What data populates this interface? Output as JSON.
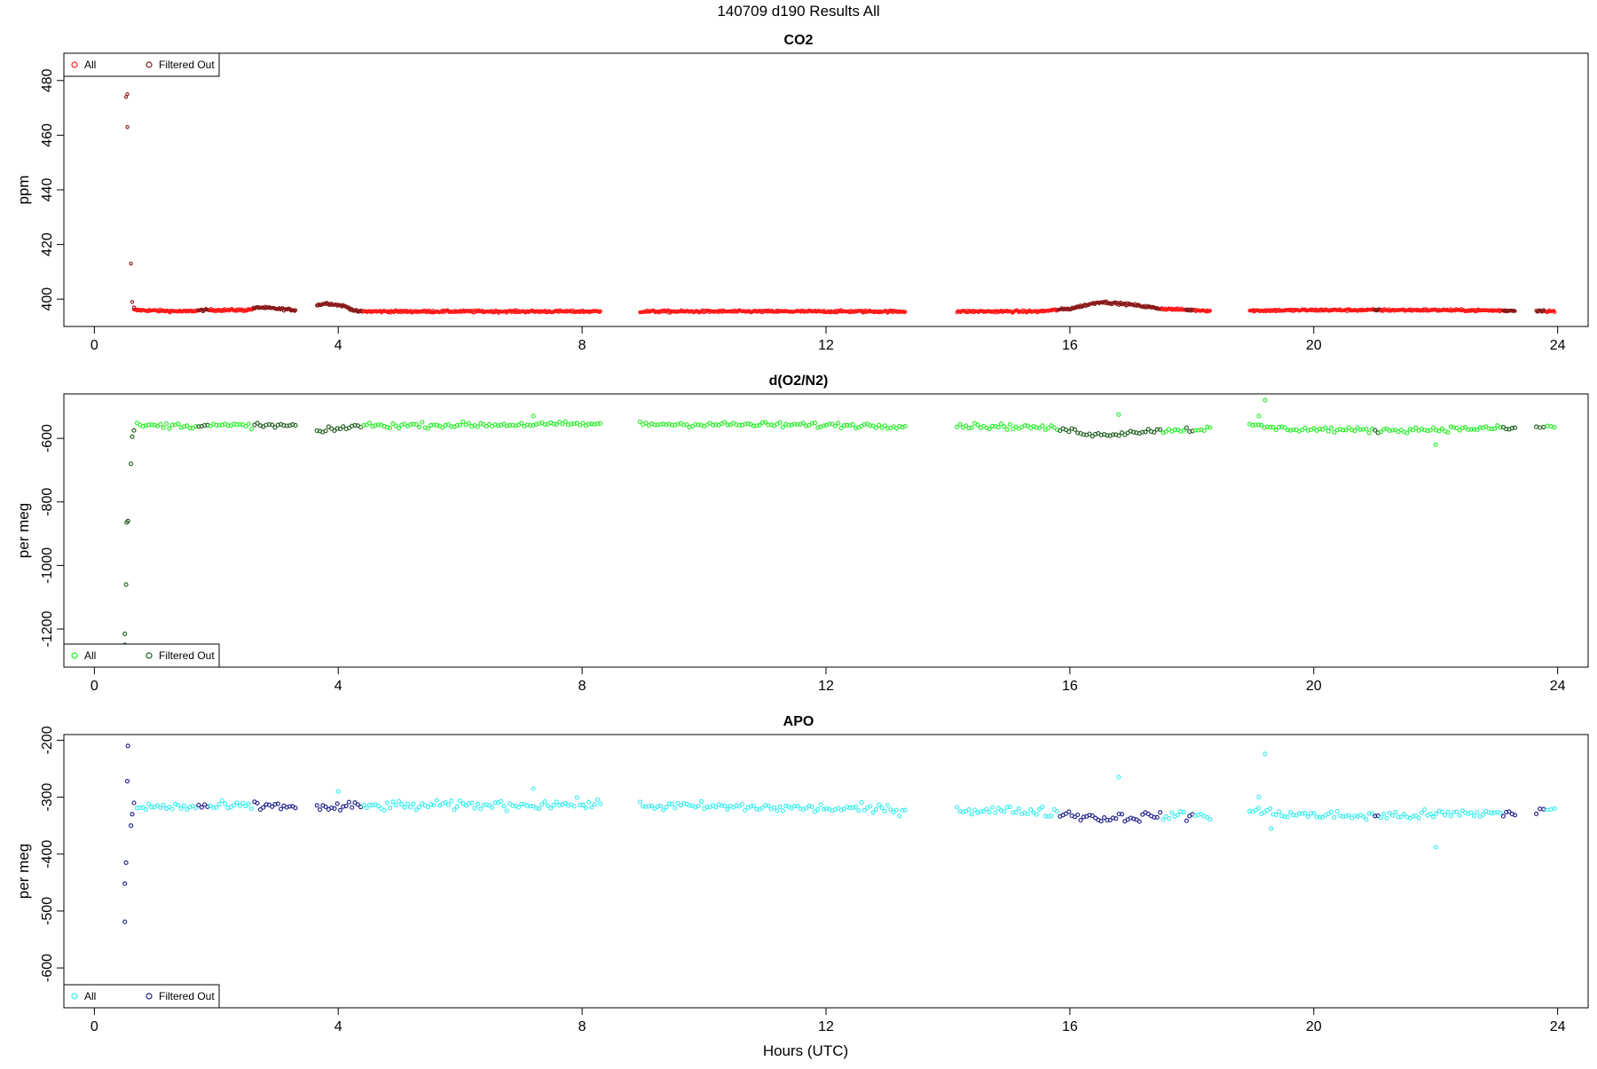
{
  "figure": {
    "title": "140709   d190   Results All",
    "xlabel": "Hours (UTC)"
  },
  "chart_data": [
    {
      "type": "scatter",
      "title": "CO2",
      "ylabel": "ppm",
      "xlim": [
        -0.5,
        24.5
      ],
      "ylim": [
        390,
        490
      ],
      "x_ticks": [
        0,
        4,
        8,
        12,
        16,
        20,
        24
      ],
      "y_ticks": [
        400,
        420,
        440,
        460,
        480
      ],
      "grid": false,
      "legend_position": "top-left",
      "legend": [
        "All",
        "Filtered Out"
      ],
      "series_colors": {
        "all": "#ff1a1a",
        "filtered": "#8b1a1a"
      },
      "baseline_profile": [
        [
          0.65,
          396
        ],
        [
          1.5,
          395.5
        ],
        [
          1.8,
          396
        ],
        [
          2.5,
          396
        ],
        [
          2.7,
          397
        ],
        [
          3.3,
          396
        ],
        [
          3.8,
          398.5
        ],
        [
          4.1,
          397.5
        ],
        [
          4.3,
          395.5
        ],
        [
          8.3,
          395.5
        ],
        [
          9.0,
          395.5
        ],
        [
          13.3,
          395.5
        ],
        [
          14.2,
          395.5
        ],
        [
          15.5,
          395.5
        ],
        [
          16.0,
          396.5
        ],
        [
          16.5,
          399
        ],
        [
          17.0,
          398
        ],
        [
          17.5,
          396.5
        ],
        [
          18.0,
          396
        ],
        [
          18.3,
          395.8
        ],
        [
          19.0,
          395.8
        ],
        [
          20.0,
          396
        ],
        [
          21.0,
          396
        ],
        [
          22.0,
          396
        ],
        [
          23.3,
          395.8
        ],
        [
          23.7,
          395.8
        ],
        [
          24.0,
          395.5
        ]
      ],
      "segments": [
        [
          0.65,
          3.3
        ],
        [
          3.65,
          8.3
        ],
        [
          8.95,
          13.3
        ],
        [
          14.15,
          18.3
        ],
        [
          18.95,
          23.3
        ],
        [
          23.65,
          23.95
        ]
      ],
      "noise": 0.4,
      "n_points": 1400,
      "filtered_ranges": [
        [
          1.7,
          1.9
        ],
        [
          2.6,
          3.3
        ],
        [
          3.65,
          4.4
        ],
        [
          15.8,
          17.5
        ],
        [
          17.9,
          18.05
        ],
        [
          21.0,
          21.1
        ],
        [
          23.1,
          23.3
        ],
        [
          23.65,
          23.8
        ]
      ],
      "spike_points": [
        [
          0.5,
          489
        ],
        [
          0.5,
          484
        ],
        [
          0.52,
          474
        ],
        [
          0.54,
          475
        ],
        [
          0.54,
          463
        ],
        [
          0.6,
          413
        ],
        [
          0.62,
          399
        ],
        [
          0.65,
          397
        ]
      ]
    },
    {
      "type": "scatter",
      "title": "d(O2/N2)",
      "ylabel": "per meg",
      "xlim": [
        -0.5,
        24.5
      ],
      "ylim": [
        -1320,
        -460
      ],
      "x_ticks": [
        0,
        4,
        8,
        12,
        16,
        20,
        24
      ],
      "y_ticks": [
        -600,
        -800,
        -1000,
        -1200
      ],
      "grid": false,
      "legend_position": "bottom-left",
      "legend": [
        "All",
        "Filtered Out"
      ],
      "series_colors": {
        "all": "#22ee22",
        "filtered": "#1a5a1a"
      },
      "baseline_profile": [
        [
          0.7,
          -560
        ],
        [
          3.3,
          -560
        ],
        [
          3.7,
          -580
        ],
        [
          4.3,
          -560
        ],
        [
          8.3,
          -555
        ],
        [
          9.0,
          -555
        ],
        [
          13.3,
          -560
        ],
        [
          14.2,
          -560
        ],
        [
          15.5,
          -565
        ],
        [
          16.0,
          -575
        ],
        [
          16.5,
          -590
        ],
        [
          17.0,
          -580
        ],
        [
          17.5,
          -575
        ],
        [
          18.3,
          -570
        ],
        [
          19.0,
          -560
        ],
        [
          19.5,
          -570
        ],
        [
          21.0,
          -575
        ],
        [
          23.0,
          -568
        ],
        [
          23.3,
          -568
        ],
        [
          23.7,
          -565
        ],
        [
          24.0,
          -565
        ]
      ],
      "segments": [
        [
          0.7,
          3.3
        ],
        [
          3.65,
          8.3
        ],
        [
          8.95,
          13.3
        ],
        [
          14.15,
          18.3
        ],
        [
          18.95,
          23.3
        ],
        [
          23.65,
          23.95
        ]
      ],
      "noise": 8,
      "n_points": 430,
      "filtered_ranges": [
        [
          1.7,
          1.9
        ],
        [
          2.6,
          3.3
        ],
        [
          3.65,
          4.4
        ],
        [
          15.8,
          17.5
        ],
        [
          17.9,
          18.05
        ],
        [
          21.0,
          21.1
        ],
        [
          23.1,
          23.3
        ],
        [
          23.65,
          23.8
        ]
      ],
      "spike_points": [
        [
          0.5,
          -1250
        ],
        [
          0.5,
          -1215
        ],
        [
          0.52,
          -1060
        ],
        [
          0.53,
          -865
        ],
        [
          0.55,
          -860
        ],
        [
          0.6,
          -680
        ],
        [
          0.62,
          -595
        ],
        [
          0.65,
          -575
        ],
        [
          7.2,
          -530
        ],
        [
          16.8,
          -525
        ],
        [
          19.2,
          -480
        ],
        [
          19.1,
          -530
        ],
        [
          22.0,
          -620
        ]
      ]
    },
    {
      "type": "scatter",
      "title": "APO",
      "ylabel": "per meg",
      "xlim": [
        -0.5,
        24.5
      ],
      "ylim": [
        -670,
        -190
      ],
      "x_ticks": [
        0,
        4,
        8,
        12,
        16,
        20,
        24
      ],
      "y_ticks": [
        -200,
        -300,
        -400,
        -500,
        -600
      ],
      "grid": false,
      "legend_position": "bottom-left",
      "legend": [
        "All",
        "Filtered Out"
      ],
      "series_colors": {
        "all": "#33eeee",
        "filtered": "#1a1a8b"
      },
      "baseline_profile": [
        [
          0.7,
          -318
        ],
        [
          3.3,
          -315
        ],
        [
          3.7,
          -320
        ],
        [
          4.3,
          -316
        ],
        [
          8.3,
          -312
        ],
        [
          9.0,
          -315
        ],
        [
          13.3,
          -322
        ],
        [
          14.2,
          -322
        ],
        [
          15.5,
          -325
        ],
        [
          16.0,
          -330
        ],
        [
          16.5,
          -337
        ],
        [
          17.0,
          -335
        ],
        [
          17.5,
          -333
        ],
        [
          18.3,
          -332
        ],
        [
          19.0,
          -325
        ],
        [
          20.0,
          -332
        ],
        [
          21.0,
          -333
        ],
        [
          23.0,
          -328
        ],
        [
          23.3,
          -328
        ],
        [
          23.7,
          -322
        ],
        [
          24.0,
          -322
        ]
      ],
      "segments": [
        [
          0.7,
          3.3
        ],
        [
          3.65,
          8.3
        ],
        [
          8.95,
          13.3
        ],
        [
          14.15,
          18.3
        ],
        [
          18.95,
          23.3
        ],
        [
          23.65,
          23.95
        ]
      ],
      "noise": 8,
      "n_points": 430,
      "filtered_ranges": [
        [
          1.7,
          1.9
        ],
        [
          2.6,
          3.3
        ],
        [
          3.65,
          4.4
        ],
        [
          15.8,
          17.5
        ],
        [
          17.9,
          18.05
        ],
        [
          21.0,
          21.1
        ],
        [
          23.1,
          23.3
        ],
        [
          23.65,
          23.8
        ]
      ],
      "spike_points": [
        [
          0.5,
          -519
        ],
        [
          0.5,
          -452
        ],
        [
          0.52,
          -415
        ],
        [
          0.54,
          -272
        ],
        [
          0.55,
          -210
        ],
        [
          0.6,
          -350
        ],
        [
          0.62,
          -330
        ],
        [
          0.65,
          -310
        ],
        [
          4.0,
          -290
        ],
        [
          7.2,
          -285
        ],
        [
          16.8,
          -265
        ],
        [
          19.2,
          -224
        ],
        [
          19.1,
          -300
        ],
        [
          19.3,
          -355
        ],
        [
          22.0,
          -388
        ]
      ]
    }
  ]
}
